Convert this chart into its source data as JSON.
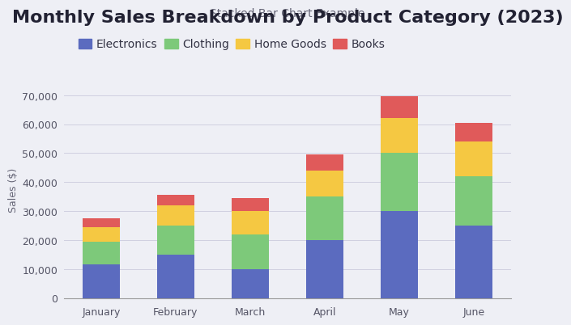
{
  "title": "Monthly Sales Breakdown by Product Category (2023)",
  "subtitle": "Stacked Bar Chart Example",
  "ylabel": "Sales ($)",
  "categories": [
    "January",
    "February",
    "March",
    "April",
    "May",
    "June"
  ],
  "series": {
    "Electronics": [
      11500,
      15000,
      10000,
      20000,
      30000,
      25000
    ],
    "Clothing": [
      8000,
      10000,
      12000,
      15000,
      20000,
      17000
    ],
    "Home Goods": [
      5000,
      7000,
      8000,
      9000,
      12000,
      12000
    ],
    "Books": [
      3000,
      3500,
      4500,
      5500,
      7500,
      6500
    ]
  },
  "colors": {
    "Electronics": "#5b6bbf",
    "Clothing": "#7dc97a",
    "Home Goods": "#f5c842",
    "Books": "#e05a5a"
  },
  "ylim": [
    0,
    75000
  ],
  "yticks": [
    0,
    10000,
    20000,
    30000,
    40000,
    50000,
    60000,
    70000
  ],
  "background_color": "#eeeff5",
  "grid_color": "#d0d0e0",
  "title_fontsize": 16,
  "subtitle_fontsize": 10,
  "axis_label_fontsize": 9,
  "tick_fontsize": 9,
  "legend_fontsize": 10,
  "bar_width": 0.5
}
